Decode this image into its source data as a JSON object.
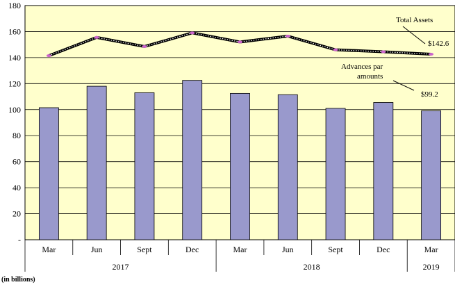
{
  "chart_data": {
    "type": "bar",
    "unit_label": "(in billions)",
    "categories": [
      "Mar",
      "Jun",
      "Sept",
      "Dec",
      "Mar",
      "Jun",
      "Sept",
      "Dec",
      "Mar"
    ],
    "year_groups": [
      {
        "label": "2017",
        "start": 0,
        "end": 3
      },
      {
        "label": "2018",
        "start": 4,
        "end": 7
      },
      {
        "label": "2019",
        "start": 8,
        "end": 8
      }
    ],
    "yticks": [
      "-",
      "20",
      "40",
      "60",
      "80",
      "100",
      "120",
      "140",
      "160",
      "180"
    ],
    "ylim": [
      0,
      180
    ],
    "grid": true,
    "series": [
      {
        "name": "Advances par amounts",
        "kind": "bar",
        "color": "#9999cc",
        "values": [
          101.5,
          118,
          113,
          122.5,
          112.5,
          111.5,
          101,
          105.5,
          99.2
        ]
      },
      {
        "name": "Total Assets",
        "kind": "line",
        "color": "#000000",
        "values": [
          141.5,
          155.5,
          148.5,
          159,
          152,
          156.5,
          146,
          144.5,
          142.6
        ]
      }
    ],
    "annotations": {
      "total_assets_label": "Total Assets",
      "total_assets_value": "$142.6",
      "advances_label_line1": "Advances  par",
      "advances_label_line2": "amounts",
      "advances_value": "$99.2"
    },
    "colors": {
      "plot_background": "#ffffcc",
      "bar_fill": "#9999cc",
      "marker": "#cc66cc"
    }
  }
}
